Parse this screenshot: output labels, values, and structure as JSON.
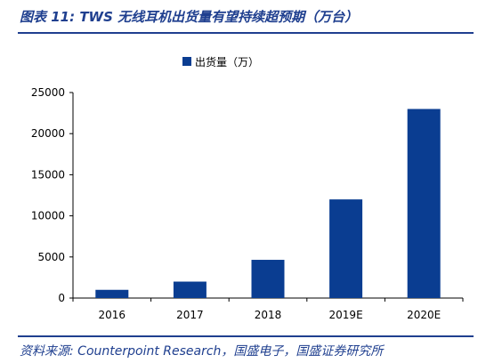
{
  "page": {
    "title": "图表 11: TWS 无线耳机出货量有望持续超预期（万台）",
    "source": "资料来源: Counterpoint Research，国盛电子，国盛证券研究所"
  },
  "colors": {
    "bar": "#0a3d91",
    "accent": "#1f3f8f",
    "axis": "#000000"
  },
  "chart_data": {
    "type": "bar",
    "categories": [
      "2016",
      "2017",
      "2018",
      "2019E",
      "2020E"
    ],
    "series": [
      {
        "name": "出货量（万）",
        "values": [
          1000,
          2000,
          4650,
          12000,
          23000
        ]
      }
    ],
    "yticks": [
      "0",
      "5000",
      "10000",
      "15000",
      "20000",
      "25000"
    ],
    "ylim": [
      0,
      25000
    ],
    "grid": false,
    "legend": "top-center"
  }
}
